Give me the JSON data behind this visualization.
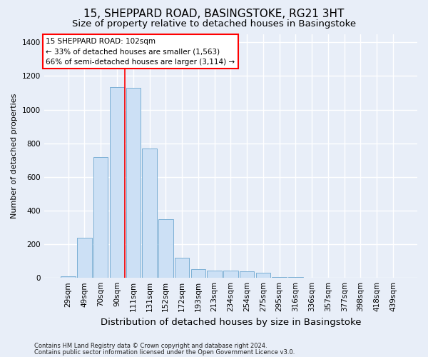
{
  "title": "15, SHEPPARD ROAD, BASINGSTOKE, RG21 3HT",
  "subtitle": "Size of property relative to detached houses in Basingstoke",
  "xlabel": "Distribution of detached houses by size in Basingstoke",
  "ylabel": "Number of detached properties",
  "footnote1": "Contains HM Land Registry data © Crown copyright and database right 2024.",
  "footnote2": "Contains public sector information licensed under the Open Government Licence v3.0.",
  "annotation_line1": "15 SHEPPARD ROAD: 102sqm",
  "annotation_line2": "← 33% of detached houses are smaller (1,563)",
  "annotation_line3": "66% of semi-detached houses are larger (3,114) →",
  "bar_labels": [
    "29sqm",
    "49sqm",
    "70sqm",
    "90sqm",
    "111sqm",
    "131sqm",
    "152sqm",
    "172sqm",
    "193sqm",
    "213sqm",
    "234sqm",
    "254sqm",
    "275sqm",
    "295sqm",
    "316sqm",
    "336sqm",
    "357sqm",
    "377sqm",
    "398sqm",
    "418sqm",
    "439sqm"
  ],
  "bar_values": [
    10,
    240,
    720,
    1135,
    1130,
    770,
    350,
    120,
    50,
    45,
    42,
    38,
    32,
    5,
    5,
    1,
    0,
    0,
    0,
    0,
    0
  ],
  "bar_color": "#cce0f5",
  "bar_edge_color": "#7bafd4",
  "red_line_x": 3.5,
  "ylim": [
    0,
    1450
  ],
  "yticks": [
    0,
    200,
    400,
    600,
    800,
    1000,
    1200,
    1400
  ],
  "background_color": "#e8eef8",
  "plot_background": "#e8eef8",
  "grid_color": "#ffffff",
  "title_fontsize": 11,
  "subtitle_fontsize": 9.5,
  "xlabel_fontsize": 9.5,
  "ylabel_fontsize": 8,
  "tick_fontsize": 7.5,
  "annotation_fontsize": 7.5,
  "footnote_fontsize": 6
}
